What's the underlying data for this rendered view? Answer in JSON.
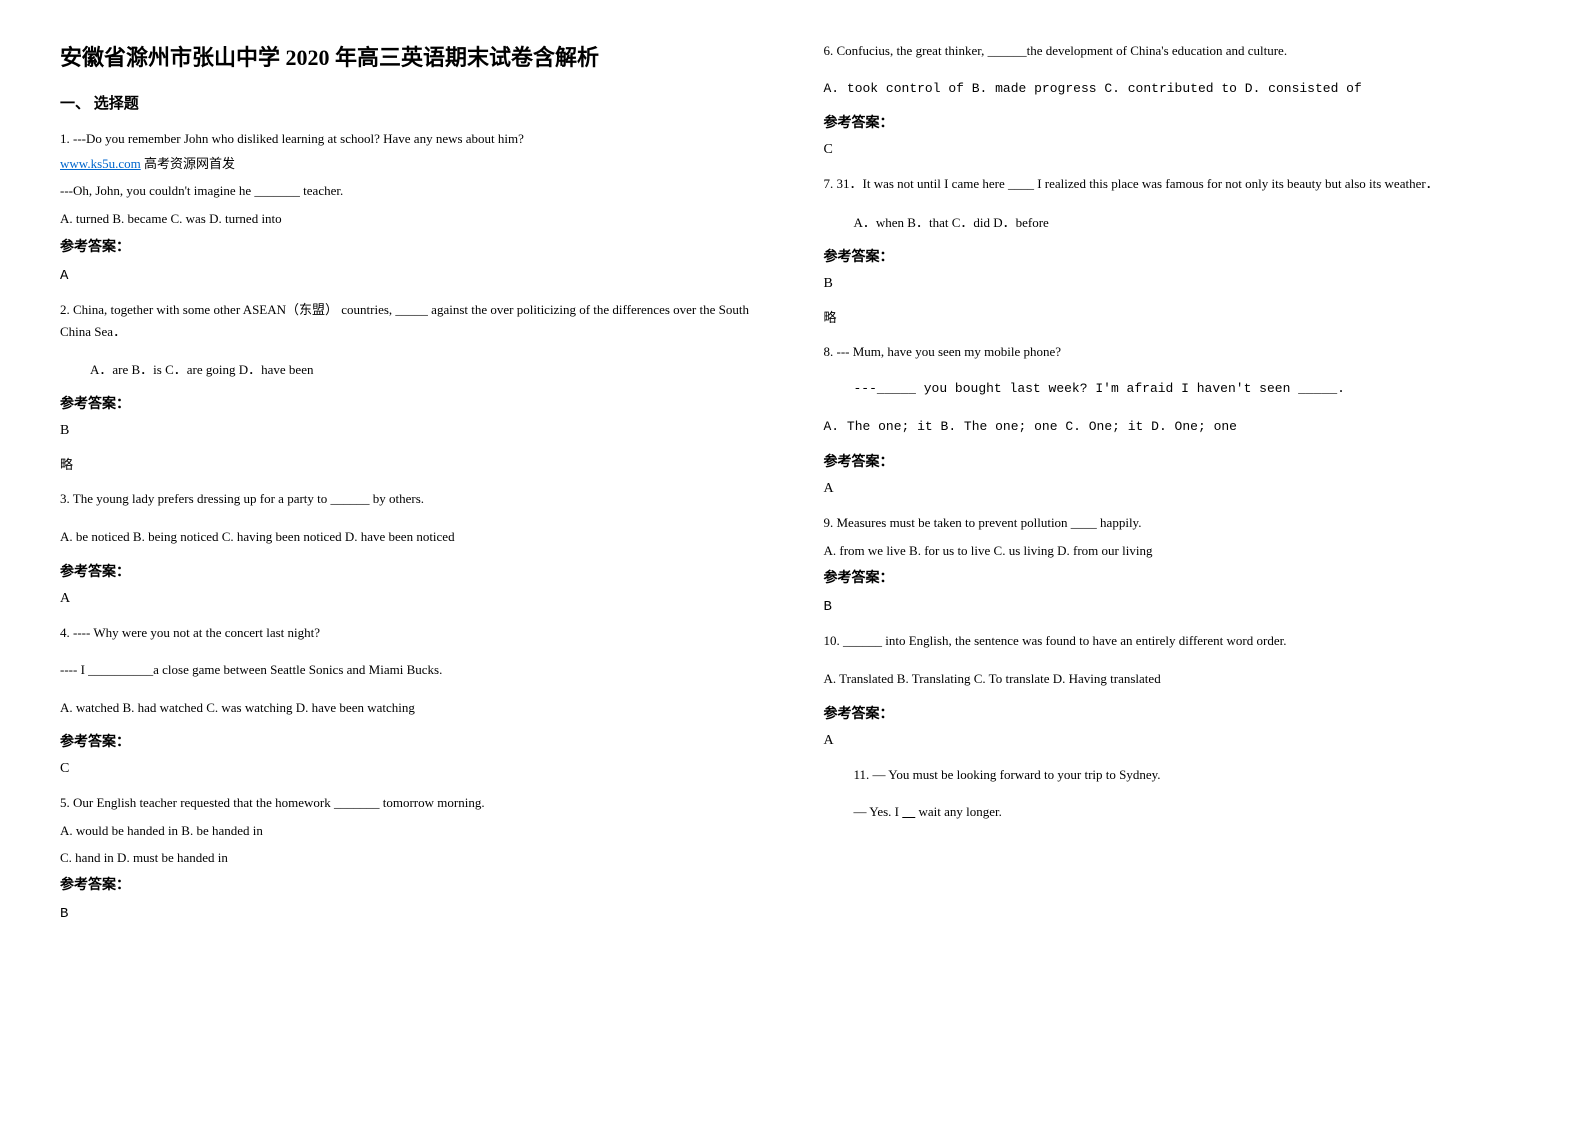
{
  "title": "安徽省滁州市张山中学 2020 年高三英语期末试卷含解析",
  "section_heading": "一、 选择题",
  "left": {
    "q1": {
      "line1": "1. ---Do you remember John who disliked learning at school?  Have any news about him?",
      "link": "www.ks5u.com",
      "link_suffix": " 高考资源网首发",
      "line2": "---Oh, John, you  couldn't imagine he _______ teacher.",
      "options": "   A. turned        B. became       C. was        D. turned into",
      "answer_label": "参考答案：",
      "answer": "A"
    },
    "q2": {
      "line1": "2. China, together with some other ASEAN（东盟） countries, _____ against the over politicizing of the differences over the South China Sea．",
      "options": "A．are              B．is               C．are going      D．have been",
      "answer_label": "参考答案：",
      "answer": "B",
      "note": "略"
    },
    "q3": {
      "line1": "3. The young lady prefers dressing up for a party to ______ by others.",
      "options": "A. be noticed       B. being noticed    C. having been noticed   D. have been noticed",
      "answer_label": "参考答案：",
      "answer": "A"
    },
    "q4": {
      "line1": "4. ---- Why were you not at the concert last night?",
      "line2": " ---- I __________a close game between Seattle Sonics and Miami Bucks.",
      "options": "  A. watched       B. had watched     C. was watching     D. have been watching",
      "answer_label": "参考答案：",
      "answer": "C"
    },
    "q5": {
      "line1": "5. Our English teacher requested that the homework _______ tomorrow morning.",
      "opt_a": "      A. would be handed in        B. be handed in",
      "opt_c": "      C. hand in                D. must be handed in",
      "answer_label": "参考答案：",
      "answer": "B"
    }
  },
  "right": {
    "q6": {
      "line1": "6. Confucius, the great thinker, ______the development of China's education and culture.",
      "options": "       A. took control of         B. made progress              C. contributed to          D. consisted of",
      "answer_label": "参考答案：",
      "answer": "C"
    },
    "q7": {
      "line1": "7. 31．It was not until I came here ____ I realized this place was famous for not only its beauty but also its weather．",
      "options": "A．when          B．that              C．did              D．before",
      "answer_label": "参考答案：",
      "answer": "B",
      "note": "略"
    },
    "q8": {
      "line1": "8. --- Mum, have you seen my mobile phone?",
      "line2": "---_____ you bought last week? I'm afraid I haven't seen _____.",
      "options": "      A. The one; it          B. The one; one        C. One; it              D. One; one",
      "answer_label": "参考答案：",
      "answer": "A"
    },
    "q9": {
      "line1": "9. Measures must be taken to prevent pollution ____ happily.",
      "options": "    A. from we live      B. for us to live C. us living               D. from our living",
      "answer_label": "参考答案：",
      "answer": "B"
    },
    "q10": {
      "line1": "10. ______ into English, the sentence was found to have an entirely different word order.",
      "options": "A. Translated   B. Translating   C. To translate   D. Having translated",
      "answer_label": "参考答案：",
      "answer": "A"
    },
    "q11": {
      "line1": "11. — You must be looking forward to your trip to Sydney.",
      "line2": "— Yes. I      wait any longer."
    }
  }
}
